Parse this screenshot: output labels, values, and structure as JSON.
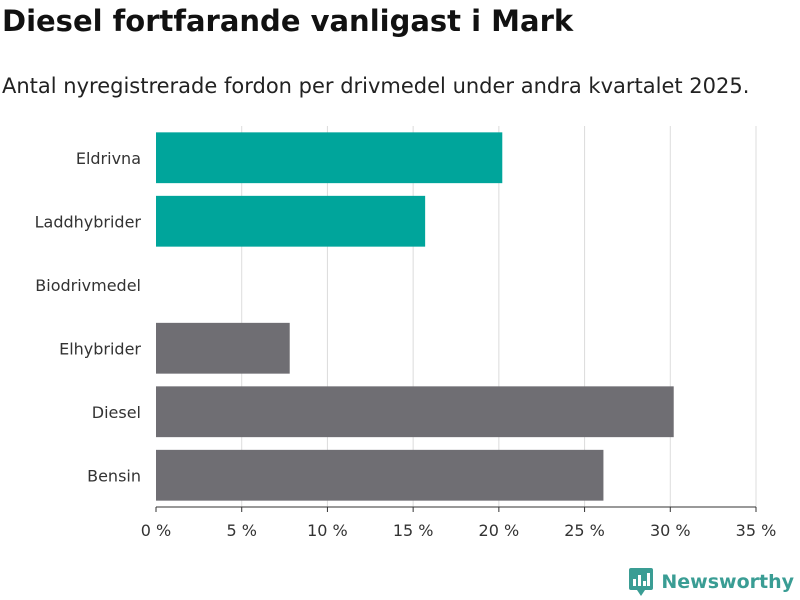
{
  "title": "Diesel fortfarande vanligast i Mark",
  "subtitle": "Antal nyregistrerade fordon per drivmedel under andra kvartalet 2025.",
  "brand": {
    "name": "Newsworthy",
    "icon": "newsworthy-chart-icon",
    "color": "#3a9d94"
  },
  "chart_data": {
    "type": "bar",
    "orientation": "horizontal",
    "categories": [
      "Eldrivna",
      "Laddhybrider",
      "Biodrivmedel",
      "Elhybrider",
      "Diesel",
      "Bensin"
    ],
    "values": [
      20.2,
      15.7,
      0,
      7.8,
      30.2,
      26.1
    ],
    "colors": [
      "#00a59b",
      "#00a59b",
      "#00a59b",
      "#6f6e73",
      "#6f6e73",
      "#6f6e73"
    ],
    "xlim": [
      0,
      35
    ],
    "xticks": [
      0,
      5,
      10,
      15,
      20,
      25,
      30,
      35
    ],
    "xtick_labels": [
      "0 %",
      "5 %",
      "10 %",
      "15 %",
      "20 %",
      "25 %",
      "30 %",
      "35 %"
    ],
    "xlabel": "",
    "ylabel": "",
    "grid": true,
    "legend": "none"
  }
}
